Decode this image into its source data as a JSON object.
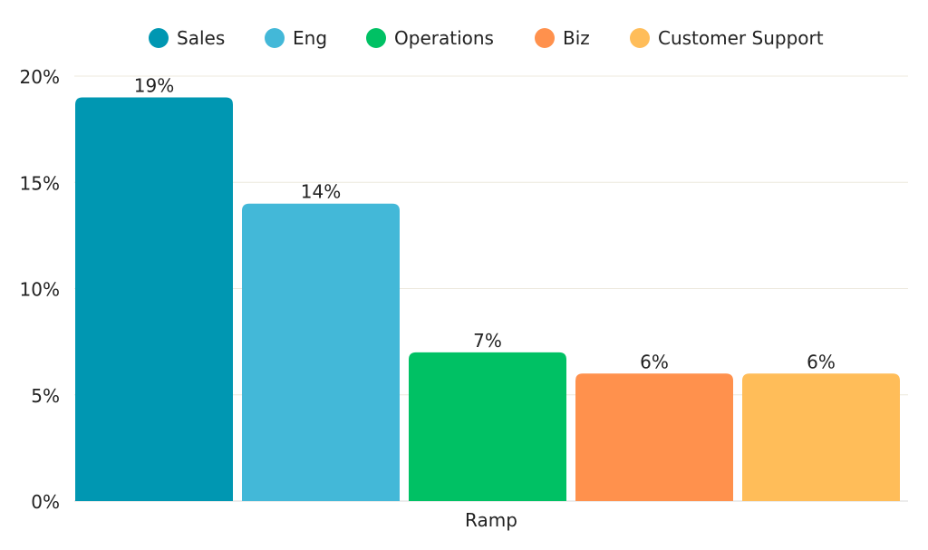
{
  "chart_data": {
    "type": "bar",
    "title": "",
    "xlabel": "Ramp",
    "ylabel": "",
    "categories": [
      "Ramp"
    ],
    "series": [
      {
        "name": "Sales",
        "values": [
          19
        ],
        "label": "19%",
        "color": "#0097B2"
      },
      {
        "name": "Eng",
        "values": [
          14
        ],
        "label": "14%",
        "color": "#43B8D8"
      },
      {
        "name": "Operations",
        "values": [
          7
        ],
        "label": "7%",
        "color": "#00C164"
      },
      {
        "name": "Biz",
        "values": [
          6
        ],
        "label": "6%",
        "color": "#FF914D"
      },
      {
        "name": "Customer Support",
        "values": [
          6
        ],
        "label": "6%",
        "color": "#FFBD59"
      }
    ],
    "ylim": [
      0,
      20
    ],
    "yticks": [
      0,
      5,
      10,
      15,
      20
    ],
    "ytick_labels": [
      "0%",
      "5%",
      "10%",
      "15%",
      "20%"
    ],
    "grid": true,
    "legend_position": "top-center"
  }
}
